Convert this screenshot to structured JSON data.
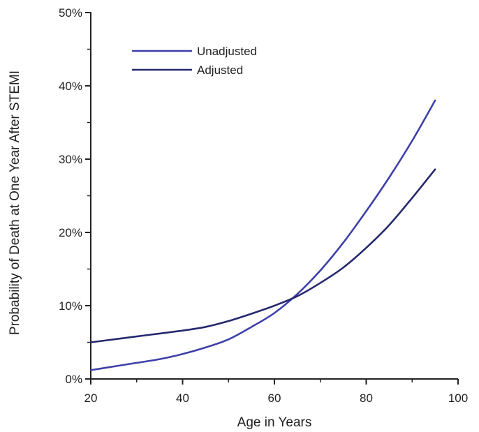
{
  "chart_data": {
    "type": "line",
    "title": "",
    "xlabel": "Age in Years",
    "ylabel": "Probability of Death at One Year After STEMI",
    "xlim": [
      20,
      100
    ],
    "ylim": [
      0,
      50
    ],
    "x_ticks": [
      20,
      40,
      60,
      80,
      100
    ],
    "x_tick_labels": [
      "20",
      "40",
      "60",
      "80",
      "100"
    ],
    "y_ticks": [
      0,
      10,
      20,
      30,
      40,
      50
    ],
    "y_tick_labels": [
      "0%",
      "10%",
      "20%",
      "30%",
      "40%",
      "50%"
    ],
    "grid": false,
    "legend_position": "top-left",
    "series": [
      {
        "name": "Unadjusted",
        "color": "#3d40a8",
        "x": [
          20,
          25,
          30,
          35,
          40,
          45,
          50,
          55,
          60,
          65,
          70,
          75,
          80,
          85,
          90,
          95
        ],
        "y": [
          1.2,
          1.7,
          2.2,
          2.7,
          3.4,
          4.3,
          5.4,
          7.1,
          9.0,
          11.6,
          14.8,
          18.6,
          22.9,
          27.5,
          32.5,
          38.0
        ]
      },
      {
        "name": "Adjusted",
        "color": "#26286e",
        "x": [
          20,
          25,
          30,
          35,
          40,
          45,
          50,
          55,
          60,
          65,
          70,
          75,
          80,
          85,
          90,
          95
        ],
        "y": [
          5.0,
          5.4,
          5.8,
          6.2,
          6.6,
          7.1,
          7.9,
          8.9,
          10.0,
          11.3,
          13.1,
          15.2,
          17.9,
          21.0,
          24.7,
          28.6
        ]
      }
    ]
  }
}
